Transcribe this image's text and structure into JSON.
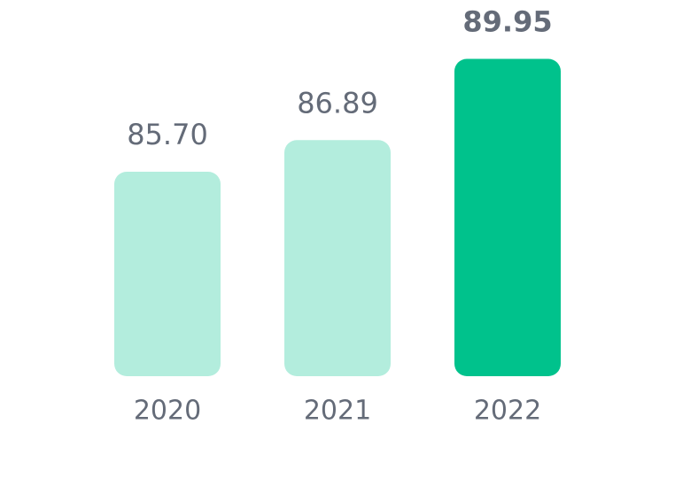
{
  "chart_data": {
    "type": "bar",
    "categories": [
      "2020",
      "2021",
      "2022"
    ],
    "values": [
      85.7,
      86.89,
      89.95
    ],
    "value_labels": [
      "85.70",
      "86.89",
      "89.95"
    ],
    "colors": [
      "#b3eddd",
      "#b3eddd",
      "#00c28c"
    ],
    "highlight_index": 2,
    "ylim": [
      78,
      90
    ]
  }
}
